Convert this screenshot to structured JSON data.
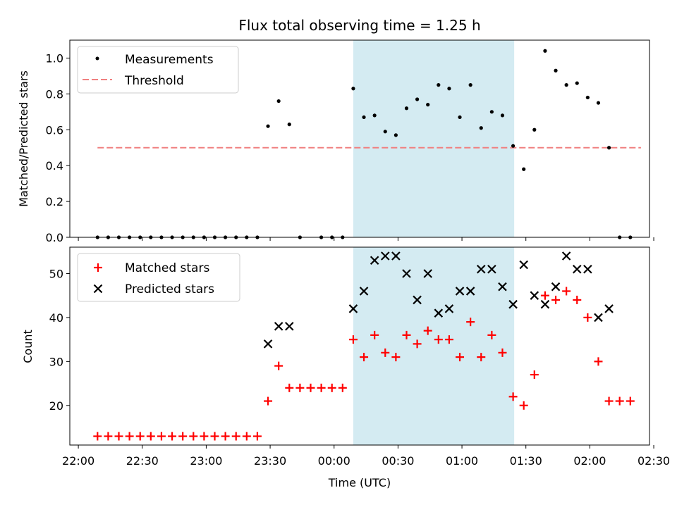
{
  "title": "Flux total observing time = 1.25 h",
  "colors": {
    "shade": "#add8e6",
    "threshold": "#f08080",
    "matched": "#ff0000",
    "predicted": "#000000"
  },
  "chart_data": [
    {
      "type": "scatter",
      "ylabel": "Matched/Predicted stars",
      "ylim": [
        0,
        1.1
      ],
      "yticks": [
        "0.0",
        "0.2",
        "0.4",
        "0.6",
        "0.8",
        "1.0"
      ],
      "xlim_min": [
        -4,
        268
      ],
      "shaded_interval_min": [
        129,
        204.5
      ],
      "legend": "top-left",
      "series": [
        {
          "name": "Measurements",
          "x_min": [
            9,
            14,
            19,
            24,
            29,
            34,
            39,
            44,
            49,
            54,
            59,
            64,
            69,
            74,
            79,
            84,
            89,
            94,
            99,
            104,
            114,
            119,
            124,
            129,
            134,
            139,
            144,
            149,
            154,
            159,
            164,
            169,
            174,
            179,
            184,
            189,
            194,
            199,
            204,
            209,
            214,
            219,
            224,
            229,
            234,
            239,
            244,
            249,
            254,
            259
          ],
          "y": [
            0,
            0,
            0,
            0,
            0,
            0,
            0,
            0,
            0,
            0,
            0,
            0,
            0,
            0,
            0,
            0,
            0.62,
            0.76,
            0.63,
            0,
            0,
            0,
            0,
            0.83,
            0.67,
            0.68,
            0.59,
            0.57,
            0.72,
            0.77,
            0.74,
            0.85,
            0.83,
            0.67,
            0.85,
            0.61,
            0.7,
            0.68,
            0.51,
            0.38,
            0.6,
            1.04,
            0.93,
            0.85,
            0.86,
            0.78,
            0.75,
            0.5,
            0,
            0
          ]
        },
        {
          "name": "Threshold",
          "x_min": [
            9,
            264
          ],
          "y": [
            0.5,
            0.5
          ]
        }
      ]
    },
    {
      "type": "scatter",
      "ylabel": "Count",
      "xlabel": "Time (UTC)",
      "ylim": [
        11,
        56
      ],
      "yticks": [
        "20",
        "30",
        "40",
        "50"
      ],
      "xticks": [
        "22:00",
        "22:30",
        "23:00",
        "23:30",
        "00:00",
        "00:30",
        "01:00",
        "01:30",
        "02:00",
        "02:30"
      ],
      "xlim_min": [
        -4,
        268
      ],
      "shaded_interval_min": [
        129,
        204.5
      ],
      "legend": "top-left",
      "series": [
        {
          "name": "Matched stars",
          "x_min": [
            9,
            14,
            19,
            24,
            29,
            34,
            39,
            44,
            49,
            54,
            59,
            64,
            69,
            74,
            79,
            84,
            89,
            94,
            99,
            104,
            109,
            114,
            119,
            124,
            129,
            134,
            139,
            144,
            149,
            154,
            159,
            164,
            169,
            174,
            179,
            184,
            189,
            194,
            199,
            204,
            209,
            214,
            219,
            224,
            229,
            234,
            239,
            244,
            249,
            254,
            259
          ],
          "y": [
            13,
            13,
            13,
            13,
            13,
            13,
            13,
            13,
            13,
            13,
            13,
            13,
            13,
            13,
            13,
            13,
            21,
            29,
            24,
            24,
            24,
            24,
            24,
            24,
            35,
            31,
            36,
            32,
            31,
            36,
            34,
            37,
            35,
            35,
            31,
            39,
            31,
            36,
            32,
            22,
            20,
            27,
            45,
            44,
            46,
            44,
            40,
            30,
            21,
            21,
            21
          ]
        },
        {
          "name": "Predicted stars",
          "x_min": [
            89,
            94,
            99,
            129,
            134,
            139,
            144,
            149,
            154,
            159,
            164,
            169,
            174,
            179,
            184,
            189,
            194,
            199,
            204,
            209,
            214,
            219,
            224,
            229,
            234,
            239,
            244,
            249
          ],
          "y": [
            34,
            38,
            38,
            42,
            46,
            53,
            54,
            54,
            50,
            44,
            50,
            41,
            42,
            46,
            46,
            51,
            51,
            47,
            43,
            52,
            45,
            43,
            47,
            54,
            51,
            51,
            40,
            42
          ]
        }
      ]
    }
  ]
}
